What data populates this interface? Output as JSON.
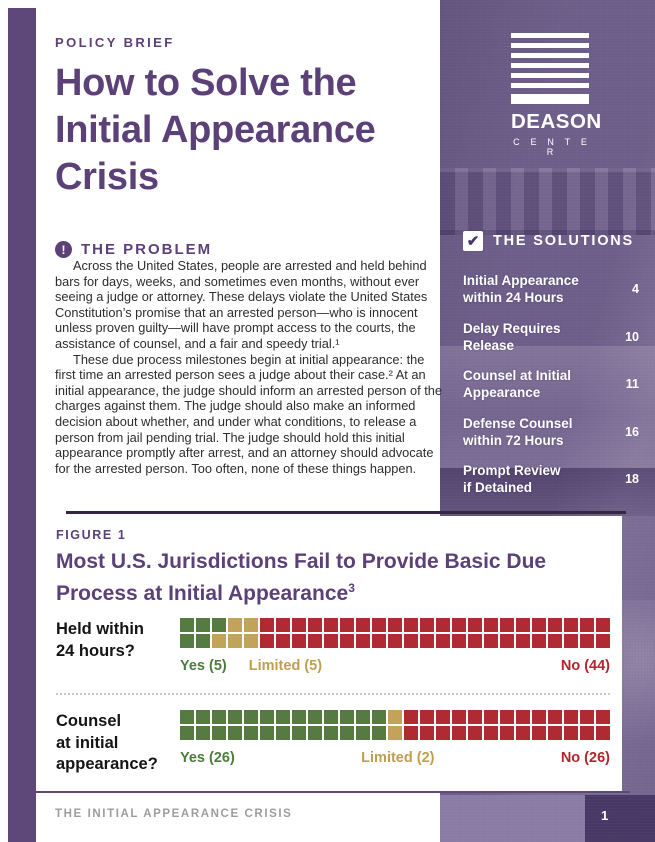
{
  "header": {
    "kicker": "POLICY BRIEF",
    "title": "How to Solve the\nInitial Appearance\nCrisis"
  },
  "problem": {
    "icon_glyph": "!",
    "heading": "THE PROBLEM",
    "para1": "Across the United States, people are arrested and held behind bars for days, weeks, and sometimes even months, without ever seeing a judge or attorney. These delays violate the United States Constitution’s promise that an arrested person—who is innocent unless proven guilty—will have prompt access to the courts, the assistance of counsel, and a fair and speedy trial.¹",
    "para2": "These due process milestones begin at initial appearance: the first time an arrested person sees a judge about their case.² At an initial appearance, the judge should inform an arrested person of the charges against them. The judge should also make an informed decision about whether, and under what conditions, to release a person from jail pending trial. The judge should hold this initial appearance promptly after arrest, and an attorney should advocate for the arrested person. Too often, none of these things happen."
  },
  "sidebar": {
    "logo": {
      "name": "DEASON",
      "subname": "C E N T E R"
    },
    "check_glyph": "✔",
    "solutions_heading": "THE SOLUTIONS",
    "items": [
      {
        "label": "Initial Appearance\nwithin 24 Hours",
        "page": "4"
      },
      {
        "label": "Delay Requires\nRelease",
        "page": "10"
      },
      {
        "label": "Counsel at Initial\nAppearance",
        "page": "11"
      },
      {
        "label": "Defense Counsel\nwithin 72 Hours",
        "page": "16"
      },
      {
        "label": "Prompt Review\nif Detained",
        "page": "18"
      }
    ]
  },
  "figure": {
    "kicker": "FIGURE 1",
    "title": "Most U.S. Jurisdictions Fail to Provide Basic Due\nProcess at Initial Appearance",
    "title_sup": "3"
  },
  "chart_data": [
    {
      "type": "waffle",
      "question": "Held within\n24 hours?",
      "rows": 2,
      "columns": 27,
      "total": 54,
      "unit": "U.S. jurisdictions",
      "segments": [
        {
          "key": "yes",
          "label": "Yes (5)",
          "count": 5,
          "color": "#567b41"
        },
        {
          "key": "limited",
          "label": "Limited (5)",
          "count": 5,
          "color": "#c2a458"
        },
        {
          "key": "no",
          "label": "No (44)",
          "count": 44,
          "color": "#b02b31"
        }
      ]
    },
    {
      "type": "waffle",
      "question": "Counsel\nat initial\nappearance?",
      "rows": 2,
      "columns": 27,
      "total": 54,
      "unit": "U.S. jurisdictions",
      "segments": [
        {
          "key": "yes",
          "label": "Yes (26)",
          "count": 26,
          "color": "#567b41"
        },
        {
          "key": "limited",
          "label": "Limited (2)",
          "count": 2,
          "color": "#c2a458"
        },
        {
          "key": "no",
          "label": "No (26)",
          "count": 26,
          "color": "#b02b31"
        }
      ]
    }
  ],
  "footer": {
    "label": "THE INITIAL APPEARANCE CRISIS",
    "page_number": "1"
  },
  "colors": {
    "brand_purple": "#5c4178",
    "accent_bar": "#5d4879",
    "photo_overlay": "#6e5e8a",
    "yes_green": "#567b41",
    "limited_gold": "#c2a458",
    "no_red": "#b02b31",
    "footer_gray": "#9d9d9d"
  }
}
